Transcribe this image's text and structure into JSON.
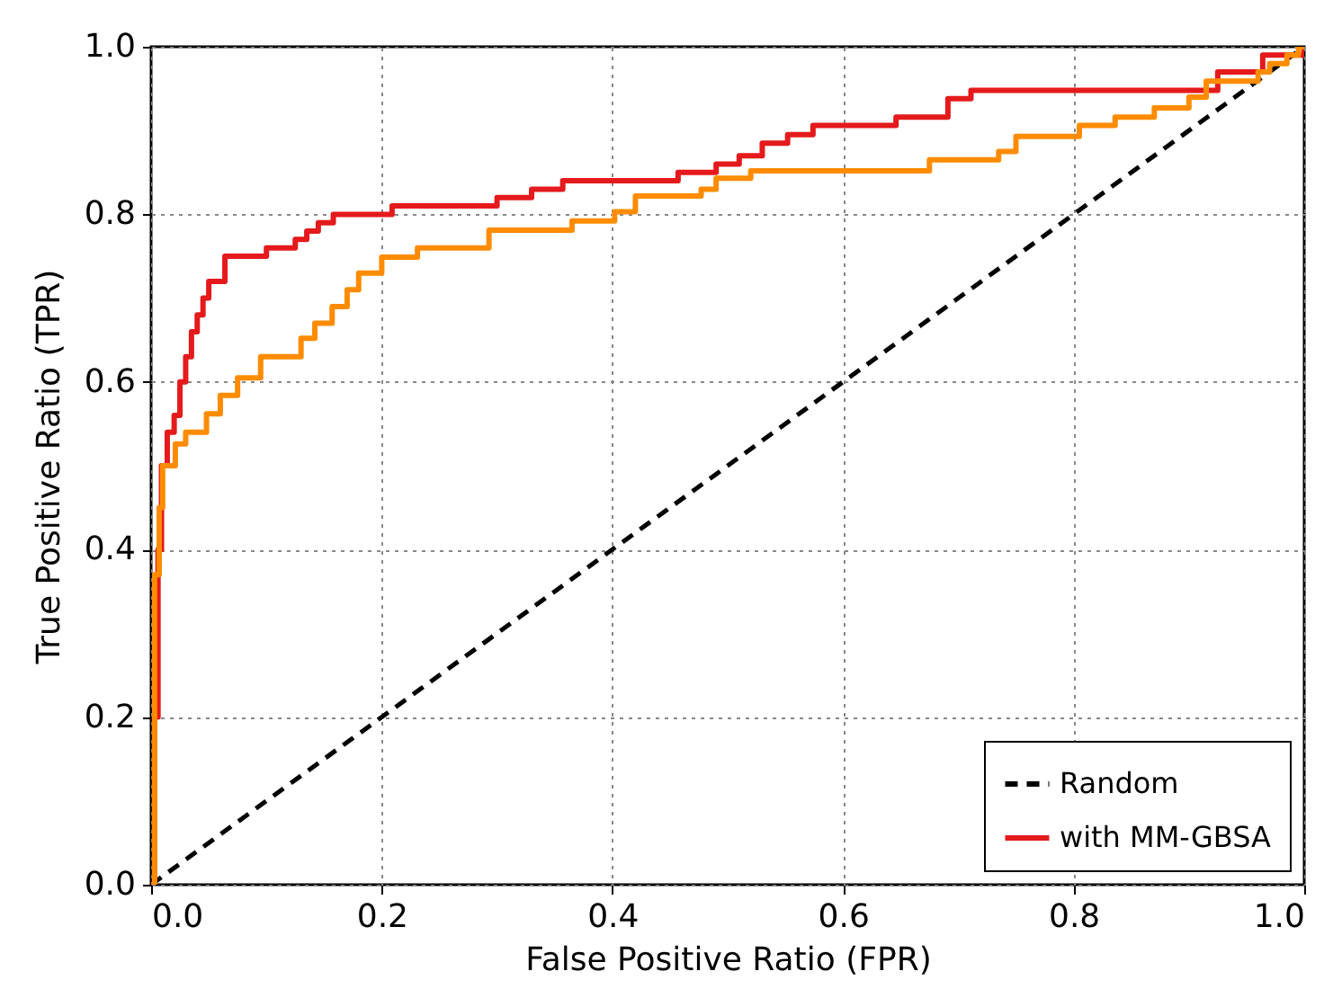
{
  "chart_data": {
    "type": "step",
    "xlabel": "False Positive Ratio (FPR)",
    "ylabel": "True Positive Ratio (TPR)",
    "xlim": [
      0,
      1
    ],
    "ylim": [
      0,
      1
    ],
    "xticks": [
      {
        "value": 0,
        "label": "0.0"
      },
      {
        "value": 0.2,
        "label": "0.2"
      },
      {
        "value": 0.4,
        "label": "0.4"
      },
      {
        "value": 0.6,
        "label": "0.6"
      },
      {
        "value": 0.8,
        "label": "0.8"
      },
      {
        "value": 1,
        "label": "1.0"
      }
    ],
    "yticks": [
      {
        "value": 0,
        "label": "0.0"
      },
      {
        "value": 0.2,
        "label": "0.2"
      },
      {
        "value": 0.4,
        "label": "0.4"
      },
      {
        "value": 0.6,
        "label": "0.6"
      },
      {
        "value": 0.8,
        "label": "0.8"
      },
      {
        "value": 1,
        "label": "1.0"
      }
    ],
    "grid": true,
    "legend": "bottom right",
    "series": [
      {
        "name": "Random",
        "type": "line",
        "color": "#000000",
        "line_style": "dashed",
        "x": [
          0,
          1
        ],
        "values": [
          0,
          1
        ]
      },
      {
        "name": "with MM-GBSA",
        "color": "#e41a1c",
        "line_style": "solid",
        "x": [
          0,
          0.003,
          0.006,
          0.009,
          0.014,
          0.02,
          0.025,
          0.03,
          0.035,
          0.04,
          0.045,
          0.05,
          0.064,
          0.1,
          0.125,
          0.135,
          0.145,
          0.158,
          0.209,
          0.3,
          0.33,
          0.357,
          0.457,
          0.49,
          0.51,
          0.53,
          0.552,
          0.574,
          0.646,
          0.691,
          0.711,
          0.925,
          0.964,
          1
        ],
        "values": [
          0,
          0.2,
          0.4,
          0.5,
          0.54,
          0.56,
          0.6,
          0.63,
          0.66,
          0.68,
          0.7,
          0.72,
          0.75,
          0.76,
          0.77,
          0.78,
          0.79,
          0.8,
          0.81,
          0.82,
          0.83,
          0.84,
          0.85,
          0.86,
          0.87,
          0.885,
          0.895,
          0.906,
          0.916,
          0.938,
          0.948,
          0.97,
          0.99,
          1
        ]
      },
      {
        "color": "#ff8c00",
        "line_style": "solid",
        "x": [
          0,
          0.003,
          0.007,
          0.01,
          0.021,
          0.03,
          0.048,
          0.06,
          0.075,
          0.095,
          0.13,
          0.142,
          0.157,
          0.17,
          0.18,
          0.2,
          0.231,
          0.293,
          0.365,
          0.402,
          0.42,
          0.477,
          0.49,
          0.52,
          0.675,
          0.735,
          0.75,
          0.805,
          0.836,
          0.87,
          0.9,
          0.915,
          0.96,
          0.97,
          0.985,
          0.995,
          1
        ],
        "values": [
          0,
          0.37,
          0.45,
          0.5,
          0.526,
          0.54,
          0.562,
          0.584,
          0.605,
          0.63,
          0.652,
          0.67,
          0.69,
          0.71,
          0.73,
          0.749,
          0.76,
          0.781,
          0.792,
          0.803,
          0.822,
          0.83,
          0.843,
          0.852,
          0.865,
          0.875,
          0.893,
          0.906,
          0.916,
          0.927,
          0.94,
          0.959,
          0.97,
          0.98,
          0.99,
          1,
          1
        ]
      }
    ]
  }
}
